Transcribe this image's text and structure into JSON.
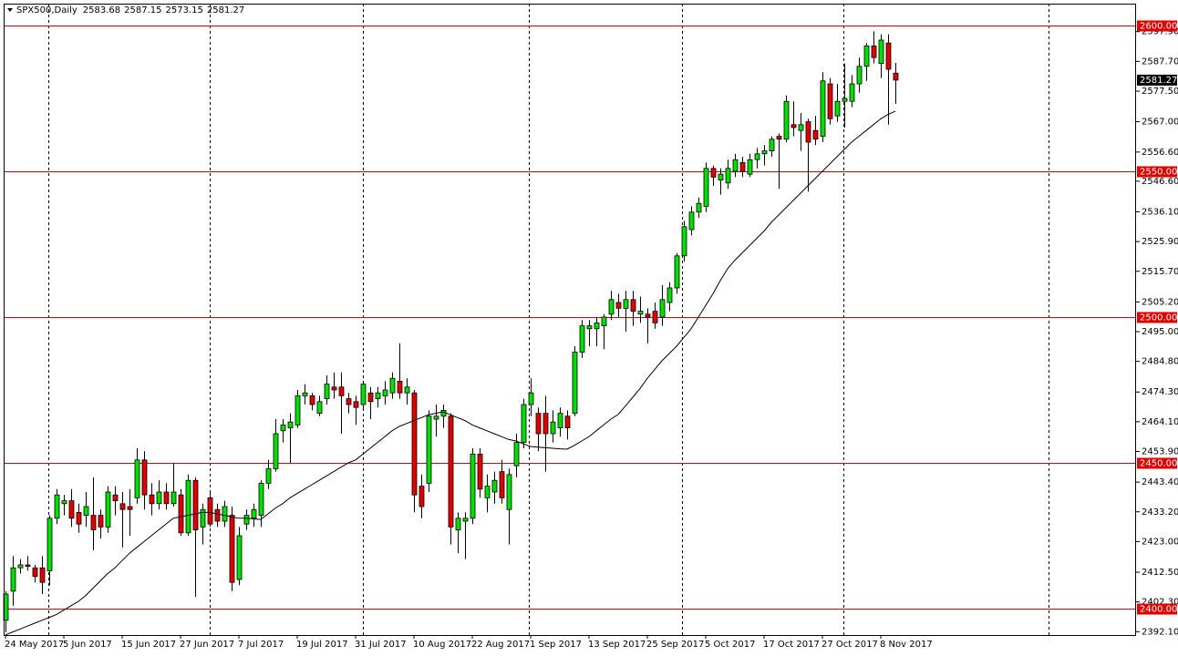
{
  "chart_data": {
    "type": "candlestick",
    "title": "SPX500,Daily",
    "up_color": "#00e000",
    "down_color": "#e00000",
    "hline_color": "#e00000",
    "categories": [
      "24 May 2017",
      null,
      null,
      null,
      null,
      null,
      null,
      null,
      "5 Jun 2017",
      null,
      null,
      null,
      null,
      null,
      null,
      null,
      "15 Jun 2017",
      null,
      null,
      null,
      null,
      null,
      null,
      null,
      "27 Jun 2017",
      null,
      null,
      null,
      null,
      null,
      null,
      null,
      "7 Jul 2017",
      null,
      null,
      null,
      null,
      null,
      null,
      null,
      "19 Jul 2017",
      null,
      null,
      null,
      null,
      null,
      null,
      null,
      "31 Jul 2017",
      null,
      null,
      null,
      null,
      null,
      null,
      null,
      "10 Aug 2017",
      null,
      null,
      null,
      null,
      null,
      null,
      null,
      "22 Aug 2017",
      null,
      null,
      null,
      null,
      null,
      null,
      null,
      "1 Sep 2017",
      null,
      null,
      null,
      null,
      null,
      null,
      null,
      "13 Sep 2017",
      null,
      null,
      null,
      null,
      null,
      null,
      null,
      "25 Sep 2017",
      null,
      null,
      null,
      null,
      null,
      null,
      null,
      "5 Oct 2017",
      null,
      null,
      null,
      null,
      null,
      null,
      null,
      "17 Oct 2017",
      null,
      null,
      null,
      null,
      null,
      null,
      null,
      "27 Oct 2017",
      null,
      null,
      null,
      null,
      null,
      null,
      null,
      "8 Nov 2017",
      null,
      null
    ],
    "open": [
      2396,
      2406,
      2414,
      2415,
      2414,
      2414,
      2413,
      2431,
      2436,
      2437,
      2433,
      2432,
      2432,
      2432,
      2428,
      2439,
      2436,
      2435,
      2438,
      2451,
      2439,
      2436,
      2440,
      2436,
      2439,
      2426,
      2444,
      2428,
      2438,
      2434,
      2430,
      2432,
      2410,
      2429,
      2431,
      2432,
      2443,
      2448,
      2461,
      2462,
      2463,
      2473,
      2473,
      2467,
      2472,
      2476,
      2476,
      2472,
      2471,
      2470,
      2474,
      2472,
      2473,
      2474,
      2478,
      2474,
      2474,
      2442,
      2443,
      2465,
      2466,
      2466,
      2427,
      2430,
      2431,
      2453,
      2438,
      2440,
      2447,
      2434,
      2449,
      2457,
      2470,
      2467,
      2467,
      2460,
      2462,
      2466,
      2467,
      2488,
      2496,
      2496,
      2497,
      2501,
      2505,
      2503,
      2506,
      2501,
      2501,
      2502,
      2500,
      2505,
      2510,
      2521,
      2530,
      2536,
      2538,
      2551,
      2547,
      2546,
      2550,
      2553,
      2549,
      2554,
      2556,
      2557,
      2562,
      2561,
      2566,
      2564,
      2567,
      2564,
      2562,
      2580,
      2569,
      2574,
      2574,
      2580,
      2586,
      2593,
      2587,
      2594,
      2583.68
    ],
    "high": [
      2406,
      2418,
      2417,
      2418,
      2415,
      2418,
      2432,
      2441,
      2439,
      2441,
      2436,
      2440,
      2445,
      2434,
      2442,
      2442,
      2440,
      2441,
      2455,
      2454,
      2443,
      2444,
      2443,
      2450,
      2441,
      2446,
      2445,
      2436,
      2440,
      2436,
      2437,
      2435,
      2428,
      2434,
      2436,
      2444,
      2451,
      2465,
      2465,
      2467,
      2475,
      2477,
      2474,
      2473,
      2480,
      2481,
      2481,
      2474,
      2473,
      2478,
      2476,
      2476,
      2478,
      2481,
      2491,
      2479,
      2475,
      2446,
      2468,
      2470,
      2470,
      2467,
      2433,
      2433,
      2455,
      2455,
      2446,
      2447,
      2451,
      2448,
      2460,
      2472,
      2479,
      2469,
      2473,
      2468,
      2469,
      2468,
      2490,
      2499,
      2499,
      2500,
      2501,
      2509,
      2508,
      2509,
      2509,
      2507,
      2503,
      2505,
      2511,
      2512,
      2522,
      2533,
      2538,
      2541,
      2553,
      2552,
      2551,
      2554,
      2556,
      2555,
      2556,
      2558,
      2559,
      2562,
      2563,
      2576,
      2574,
      2570,
      2568,
      2569,
      2584,
      2582,
      2580,
      2587,
      2583,
      2589,
      2594,
      2598,
      2597,
      2597,
      2587.15
    ],
    "low": [
      2392,
      2401,
      2412,
      2413,
      2409,
      2405,
      2408,
      2429,
      2432,
      2428,
      2426,
      2428,
      2420,
      2424,
      2426,
      2432,
      2421,
      2425,
      2436,
      2434,
      2432,
      2434,
      2434,
      2435,
      2425,
      2425,
      2404,
      2422,
      2428,
      2428,
      2428,
      2406,
      2408,
      2427,
      2428,
      2428,
      2441,
      2447,
      2457,
      2450,
      2462,
      2470,
      2468,
      2466,
      2470,
      2472,
      2460,
      2467,
      2463,
      2468,
      2465,
      2469,
      2470,
      2472,
      2472,
      2470,
      2433,
      2431,
      2440,
      2459,
      2462,
      2422,
      2419,
      2417,
      2429,
      2438,
      2433,
      2436,
      2436,
      2422,
      2445,
      2455,
      2466,
      2454,
      2447,
      2457,
      2459,
      2458,
      2466,
      2486,
      2490,
      2490,
      2489,
      2499,
      2500,
      2495,
      2497,
      2498,
      2491,
      2496,
      2497,
      2502,
      2508,
      2519,
      2528,
      2534,
      2536,
      2545,
      2542,
      2544,
      2548,
      2548,
      2548,
      2551,
      2552,
      2555,
      2544,
      2560,
      2562,
      2557,
      2543,
      2559,
      2560,
      2566,
      2567,
      2565,
      2572,
      2577,
      2581,
      2587,
      2582,
      2566,
      2573.15
    ],
    "close": [
      2405,
      2414,
      2415,
      2414.5,
      2411,
      2409,
      2431,
      2439,
      2437,
      2431,
      2429,
      2435,
      2427,
      2428,
      2440,
      2437,
      2434,
      2434,
      2451,
      2439,
      2436,
      2440,
      2436,
      2440,
      2426,
      2444,
      2427,
      2434,
      2429,
      2430,
      2435,
      2409,
      2425,
      2432,
      2434,
      2443,
      2448,
      2460,
      2463,
      2464,
      2473,
      2474,
      2470,
      2471,
      2477,
      2475,
      2473,
      2470,
      2469,
      2477,
      2471,
      2474,
      2475,
      2479,
      2474,
      2476,
      2439,
      2435,
      2466,
      2466,
      2468,
      2428,
      2431,
      2431,
      2453,
      2441,
      2442,
      2444,
      2438,
      2446,
      2457,
      2470,
      2474,
      2460,
      2460,
      2464,
      2467,
      2462,
      2488,
      2497,
      2497,
      2498,
      2500,
      2506,
      2503,
      2506,
      2502,
      2502,
      2500,
      2498,
      2506,
      2510,
      2521,
      2531,
      2536,
      2539,
      2551,
      2548,
      2549,
      2551,
      2554,
      2550,
      2554,
      2556,
      2557,
      2561,
      2561,
      2574,
      2565,
      2566,
      2560,
      2561,
      2581,
      2568,
      2574,
      2575,
      2580,
      2586,
      2593,
      2589,
      2595,
      2585,
      2581.27
    ],
    "line": {
      "color": "#000000",
      "values": [
        2391,
        2392,
        2393,
        2394,
        2395,
        2396,
        2397,
        2398,
        2399.5,
        2401,
        2402.5,
        2404.5,
        2407,
        2409.5,
        2412,
        2414,
        2416.5,
        2419,
        2421,
        2423,
        2425,
        2427,
        2429,
        2431,
        2431.5,
        2432,
        2432.5,
        2433,
        2433,
        2432.5,
        2432,
        2431.5,
        2431,
        2431,
        2430.8,
        2430.6,
        2432.5,
        2434.5,
        2436,
        2438,
        2439.5,
        2441,
        2442.5,
        2444,
        2445.5,
        2447,
        2448.5,
        2450,
        2451,
        2453,
        2455,
        2457,
        2459,
        2461,
        2462.5,
        2463.5,
        2464.5,
        2465.5,
        2466.5,
        2467,
        2467.5,
        2466.5,
        2465.5,
        2464.5,
        2463,
        2462,
        2461,
        2460,
        2459,
        2458,
        2457.5,
        2456.5,
        2455.6,
        2455.4,
        2455.2,
        2455,
        2454.8,
        2454.7,
        2456,
        2457.5,
        2459,
        2461,
        2463,
        2465,
        2466.6,
        2469.5,
        2472.5,
        2475.5,
        2479,
        2482,
        2485,
        2487.5,
        2490,
        2493,
        2496,
        2500,
        2504,
        2508,
        2512.5,
        2516.6,
        2519.5,
        2522,
        2524.5,
        2527,
        2529.5,
        2532.5,
        2535,
        2537.5,
        2540,
        2542.5,
        2545,
        2547.5,
        2550,
        2552.5,
        2555,
        2557.5,
        2560,
        2562,
        2564,
        2566,
        2568,
        2569.5,
        2570.6
      ]
    },
    "ylim": [
      2390.94,
      2607.5
    ],
    "yticks": [
      {
        "value": 2597.9,
        "label": "2597.90"
      },
      {
        "value": 2587.7,
        "label": "2587.70"
      },
      {
        "value": 2577.5,
        "label": "2577.50"
      },
      {
        "value": 2567,
        "label": "2567.00"
      },
      {
        "value": 2556.6,
        "label": "2556.60"
      },
      {
        "value": 2546.6,
        "label": "2546.60"
      },
      {
        "value": 2536.1,
        "label": "2536.10"
      },
      {
        "value": 2525.9,
        "label": "2525.90"
      },
      {
        "value": 2515.7,
        "label": "2515.70"
      },
      {
        "value": 2505.2,
        "label": "2505.20"
      },
      {
        "value": 2495,
        "label": "2495.00"
      },
      {
        "value": 2484.8,
        "label": "2484.80"
      },
      {
        "value": 2474.3,
        "label": "2474.30"
      },
      {
        "value": 2464.1,
        "label": "2464.10"
      },
      {
        "value": 2453.9,
        "label": "2453.90"
      },
      {
        "value": 2443.4,
        "label": "2443.40"
      },
      {
        "value": 2433.2,
        "label": "2433.20"
      },
      {
        "value": 2423,
        "label": "2423.00"
      },
      {
        "value": 2412.5,
        "label": "2412.50"
      },
      {
        "value": 2402.3,
        "label": "2402.30"
      },
      {
        "value": 2392.1,
        "label": "2392.10"
      }
    ],
    "hlines": [
      {
        "value": 2600,
        "label": "2600.00"
      },
      {
        "value": 2550,
        "label": "2550.00"
      },
      {
        "value": 2500,
        "label": "2500.00"
      },
      {
        "value": 2450,
        "label": "2450.00"
      },
      {
        "value": 2400,
        "label": "2400.00"
      }
    ]
  }
}
